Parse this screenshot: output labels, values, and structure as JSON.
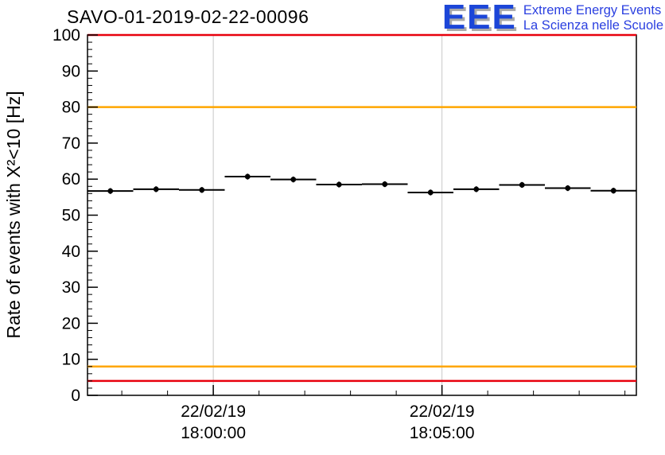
{
  "logo": {
    "acronym": "EEE",
    "line1": "Extreme Energy Events",
    "line2": "La Scienza nelle Scuole",
    "accent_color": "#1c46d8"
  },
  "chart_data": {
    "type": "scatter",
    "title": "SAVO-01-2019-02-22-00096",
    "ylabel": "Rate of events with X²<10 [Hz]",
    "xlabel": "",
    "ylim": [
      0,
      100
    ],
    "xlim": [
      0,
      12
    ],
    "grid": "vertical-only",
    "legend": "none",
    "y_ticks": [
      0,
      10,
      20,
      30,
      40,
      50,
      60,
      70,
      80,
      90,
      100
    ],
    "y_minor_step": 2,
    "x_minor_step": 1,
    "x_ticks": [
      {
        "line1": "22/02/19",
        "line2": "18:00:00",
        "x": 2.75
      },
      {
        "line1": "22/02/19",
        "line2": "18:05:00",
        "x": 7.75
      }
    ],
    "points": {
      "x": [
        0.5,
        1.5,
        2.5,
        3.5,
        4.5,
        5.5,
        6.5,
        7.5,
        8.5,
        9.5,
        10.5,
        11.5
      ],
      "y": [
        56.7,
        57.2,
        57.0,
        60.7,
        59.9,
        58.5,
        58.6,
        56.3,
        57.2,
        58.4,
        57.5,
        56.8
      ],
      "xerr": 0.5,
      "yerr": 0.8
    },
    "hlines": [
      {
        "y": 100,
        "color": "#e8000d",
        "name": "alarm-high"
      },
      {
        "y": 80,
        "color": "#ffa600",
        "name": "warn-high"
      },
      {
        "y": 8,
        "color": "#ffa600",
        "name": "warn-low"
      },
      {
        "y": 4,
        "color": "#e8000d",
        "name": "alarm-low"
      }
    ],
    "grid_color": "#c8c8c8",
    "marker_color": "#000000",
    "frame_color": "#000000"
  }
}
